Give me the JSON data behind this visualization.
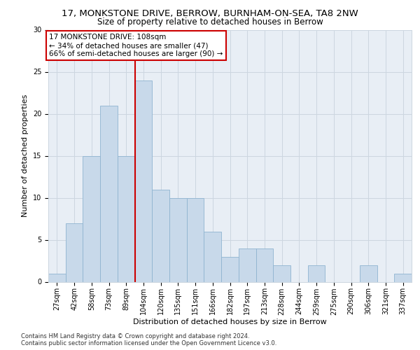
{
  "title1": "17, MONKSTONE DRIVE, BERROW, BURNHAM-ON-SEA, TA8 2NW",
  "title2": "Size of property relative to detached houses in Berrow",
  "xlabel": "Distribution of detached houses by size in Berrow",
  "ylabel": "Number of detached properties",
  "categories": [
    "27sqm",
    "42sqm",
    "58sqm",
    "73sqm",
    "89sqm",
    "104sqm",
    "120sqm",
    "135sqm",
    "151sqm",
    "166sqm",
    "182sqm",
    "197sqm",
    "213sqm",
    "228sqm",
    "244sqm",
    "259sqm",
    "275sqm",
    "290sqm",
    "306sqm",
    "321sqm",
    "337sqm"
  ],
  "values": [
    1,
    7,
    15,
    21,
    15,
    24,
    11,
    10,
    10,
    6,
    3,
    4,
    4,
    2,
    0,
    2,
    0,
    0,
    2,
    0,
    1
  ],
  "bar_color": "#c8d9ea",
  "bar_edge_color": "#8fb4d0",
  "vline_x_index": 5,
  "vline_color": "#cc0000",
  "annotation_text": "17 MONKSTONE DRIVE: 108sqm\n← 34% of detached houses are smaller (47)\n66% of semi-detached houses are larger (90) →",
  "annotation_box_color": "#ffffff",
  "annotation_box_edge": "#cc0000",
  "ylim": [
    0,
    30
  ],
  "yticks": [
    0,
    5,
    10,
    15,
    20,
    25,
    30
  ],
  "grid_color": "#ccd6e0",
  "bg_color": "#e8eef5",
  "footnote": "Contains HM Land Registry data © Crown copyright and database right 2024.\nContains public sector information licensed under the Open Government Licence v3.0.",
  "title1_fontsize": 9.5,
  "title2_fontsize": 8.5,
  "xlabel_fontsize": 8,
  "ylabel_fontsize": 8,
  "tick_fontsize": 7,
  "ann_fontsize": 7.5,
  "footnote_fontsize": 6
}
